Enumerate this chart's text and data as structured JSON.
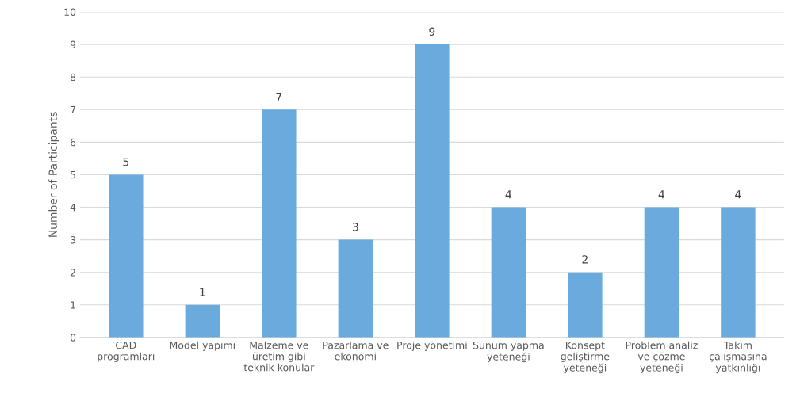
{
  "chart_data": {
    "type": "bar",
    "ylabel": "Number of Participants",
    "categories": [
      "CAD\nprogramları",
      "Model yapımı",
      "Malzeme ve\nüretim gibi\nteknik konular",
      "Pazarlama ve\nekonomi",
      "Proje yönetimi",
      "Sunum yapma\nyeteneği",
      "Konsept\ngeliştirme\nyeteneği",
      "Problem analiz\nve çözme\nyeteneği",
      "Takım\nçalışmasına\nyatkınlığı"
    ],
    "values": [
      5,
      1,
      7,
      3,
      9,
      4,
      2,
      4,
      4
    ],
    "color": "#6aaadd",
    "ylim": [
      0,
      10
    ],
    "yticks": [
      0,
      1,
      2,
      3,
      4,
      5,
      6,
      7,
      8,
      9,
      10
    ],
    "grid": "y",
    "data_labels": true
  }
}
